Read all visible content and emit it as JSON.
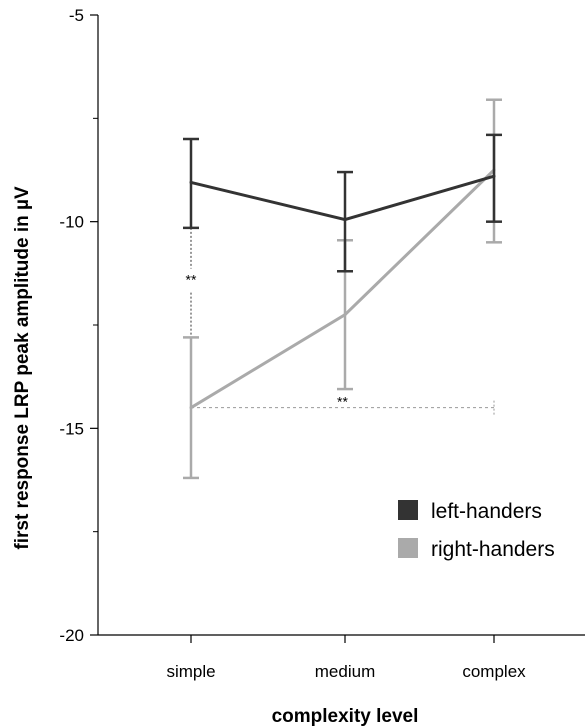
{
  "chart_data": {
    "type": "line",
    "xlabel": "complexity level",
    "ylabel": "first response LRP peak amplitude in  µV",
    "categories": [
      "simple",
      "medium",
      "complex"
    ],
    "ylim": [
      -20,
      -5
    ],
    "yticks": [
      "-5",
      "-10",
      "-15",
      "-20"
    ],
    "yminor": [
      -7.5,
      -12.5,
      -17.5
    ],
    "grid": false,
    "legend_position": "bottom-right",
    "series": [
      {
        "name": "left-handers",
        "color": "#333333",
        "values": [
          -9.05,
          -9.95,
          -8.9
        ],
        "err_low": [
          -10.15,
          -11.2,
          -10.0
        ],
        "err_high": [
          -8.0,
          -8.8,
          -7.9
        ]
      },
      {
        "name": "right-handers",
        "color": "#aaaaaa",
        "values": [
          -14.5,
          -12.25,
          -8.75
        ],
        "err_low": [
          -16.2,
          -14.05,
          -10.5
        ],
        "err_high": [
          -12.8,
          -10.45,
          -7.05
        ]
      }
    ],
    "annotations": [
      {
        "text": "**",
        "kind": "vertical",
        "category": "simple",
        "from": -10.15,
        "to": -12.8,
        "color": "#333333"
      },
      {
        "text": "**",
        "kind": "horizontal",
        "y": -14.5,
        "from_category": "simple",
        "to_category": "complex",
        "color": "#999999"
      }
    ]
  }
}
